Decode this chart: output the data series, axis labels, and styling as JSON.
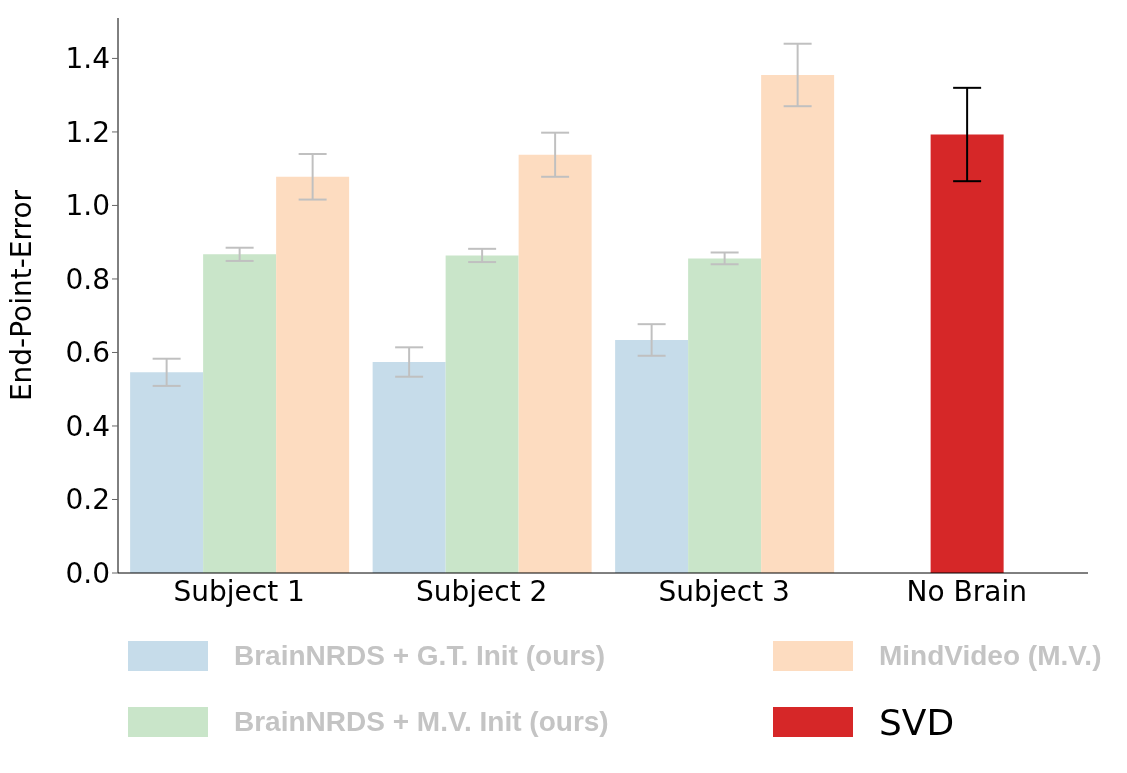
{
  "chart_data": {
    "type": "bar",
    "ylabel": "End-Point-Error",
    "categories": [
      "Subject 1",
      "Subject 2",
      "Subject 3",
      "No Brain"
    ],
    "ylim": [
      0,
      1.51
    ],
    "yticks": [
      {
        "value": 0,
        "label": "0.0"
      },
      0.2,
      0.4,
      0.6,
      0.8,
      {
        "value": 1,
        "label": "1.0"
      },
      1.2,
      1.4
    ],
    "grid": false,
    "legend": "bottom",
    "series": [
      {
        "name": "BrainNRDS + G.T. Init (ours)",
        "color": "#c6dcea",
        "values": [
          0.546,
          0.574,
          0.634,
          null
        ],
        "errors": [
          0.037,
          0.04,
          0.043,
          null
        ]
      },
      {
        "name": "BrainNRDS + M.V. Init (ours)",
        "color": "#c9e5c9",
        "values": [
          0.867,
          0.864,
          0.856,
          null
        ],
        "errors": [
          0.018,
          0.018,
          0.016,
          null
        ]
      },
      {
        "name": "MindVideo (M.V.)",
        "color": "#fddcc0",
        "values": [
          1.078,
          1.138,
          1.355,
          null
        ],
        "errors": [
          0.062,
          0.06,
          0.085,
          null
        ]
      },
      {
        "name": "SVD",
        "color": "#d62728",
        "values": [
          null,
          null,
          null,
          1.193
        ],
        "errors": [
          null,
          null,
          null,
          0.127
        ]
      }
    ]
  }
}
